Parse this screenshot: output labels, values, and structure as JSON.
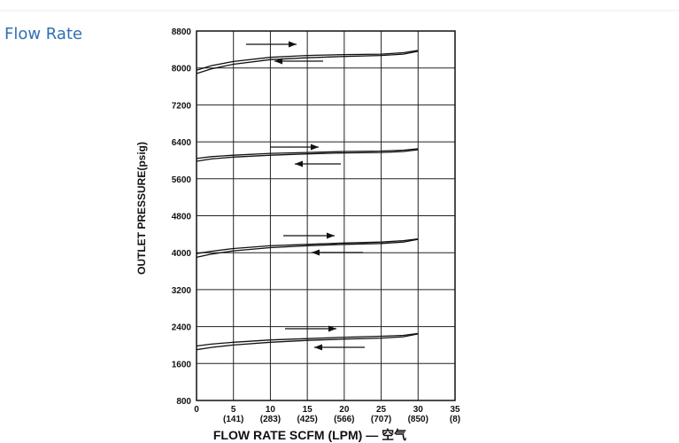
{
  "heading": "Flow Rate",
  "chart_data": {
    "type": "line",
    "xlabel": "FLOW RATE SCFM (LPM) — 空气",
    "ylabel": "OUTLET PRESSURE(psig)",
    "x": [
      0,
      2,
      5,
      10,
      15,
      20,
      25,
      28,
      30
    ],
    "xlim": [
      0,
      35
    ],
    "xticks": [
      0,
      {
        "value": 5,
        "label": "5",
        "lpm": "(141)"
      },
      {
        "value": 10,
        "label": "10",
        "lpm": "(283)"
      },
      {
        "value": 15,
        "label": "15",
        "lpm": "(425)"
      },
      {
        "value": 20,
        "label": "20",
        "lpm": "(566)"
      },
      {
        "value": 25,
        "label": "25",
        "lpm": "(707)"
      },
      {
        "value": 30,
        "label": "30",
        "lpm": "(850)"
      },
      {
        "value": 35,
        "label": "35",
        "lpm": "(8)"
      }
    ],
    "ylim": [
      800,
      8800
    ],
    "yticks": [
      800,
      1600,
      2400,
      3200,
      4000,
      4800,
      5600,
      6400,
      7200,
      8000,
      8800
    ],
    "grid": true,
    "series": [
      {
        "color": "#111111",
        "values": [
          7880,
          7980,
          8080,
          8180,
          8220,
          8250,
          8270,
          8300,
          8360
        ]
      },
      {
        "color": "#111111",
        "values": [
          7950,
          8050,
          8140,
          8230,
          8270,
          8290,
          8300,
          8330,
          8380
        ]
      },
      {
        "color": "#111111",
        "values": [
          5980,
          6030,
          6070,
          6110,
          6140,
          6160,
          6170,
          6190,
          6230
        ]
      },
      {
        "color": "#111111",
        "values": [
          6040,
          6080,
          6110,
          6150,
          6170,
          6190,
          6200,
          6220,
          6250
        ]
      },
      {
        "color": "#111111",
        "values": [
          3900,
          3970,
          4040,
          4110,
          4150,
          4180,
          4200,
          4230,
          4290
        ]
      },
      {
        "color": "#111111",
        "values": [
          3980,
          4030,
          4090,
          4150,
          4180,
          4210,
          4230,
          4260,
          4300
        ]
      },
      {
        "color": "#111111",
        "values": [
          1900,
          1950,
          2000,
          2060,
          2100,
          2130,
          2150,
          2180,
          2240
        ]
      },
      {
        "color": "#111111",
        "values": [
          1980,
          2020,
          2060,
          2110,
          2140,
          2170,
          2190,
          2210,
          2250
        ]
      }
    ]
  }
}
